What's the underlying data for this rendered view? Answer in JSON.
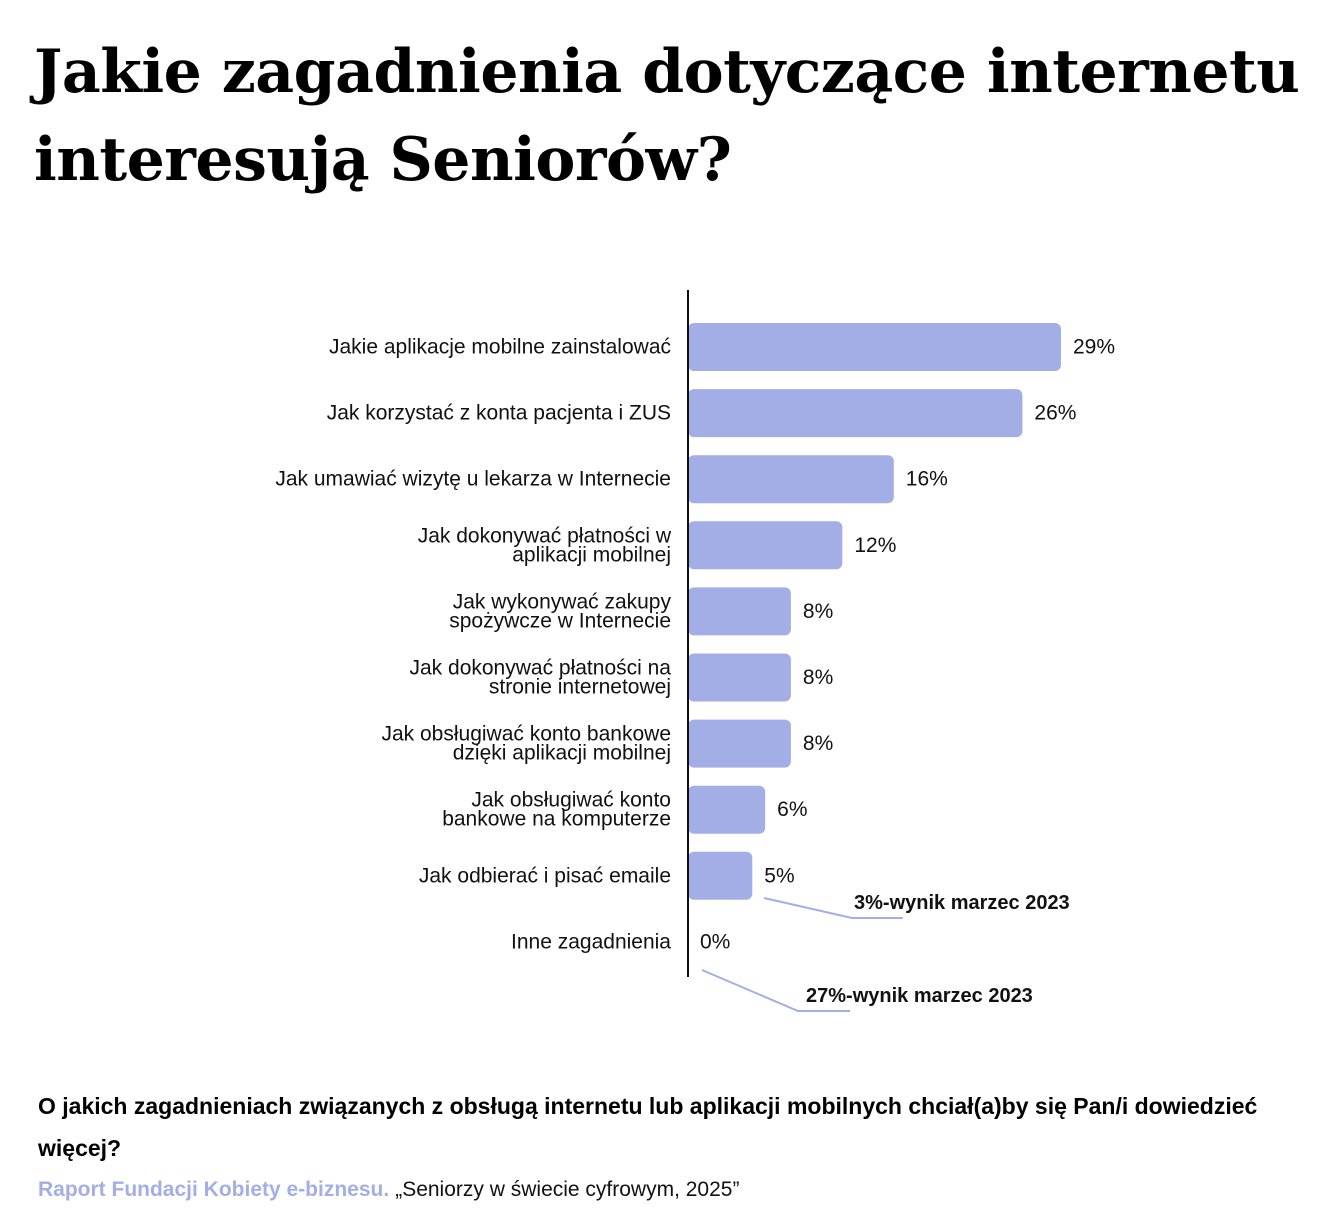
{
  "title": "Jakie zagadnienia dotyczące internetu interesują Seniorów?",
  "question": "O jakich zagadnieniach związanych z obsługą internetu lub aplikacji mobilnych chciał(a)by się Pan/i dowiedzieć więcej?",
  "source": {
    "org": "Raport Fundacji Kobiety e-biznesu.",
    "title": "„Seniorzy w świecie cyfrowym, 2025”"
  },
  "colors": {
    "bar": "#a4aee6",
    "axis": "#111111",
    "note_line": "#a4aee6",
    "source_org": "#a3aee6"
  },
  "chart_data": {
    "type": "bar",
    "orientation": "horizontal",
    "categories": [
      [
        "Jakie aplikacje mobilne zainstalować"
      ],
      [
        "Jak korzystać z konta pacjenta i ZUS"
      ],
      [
        "Jak umawiać wizytę u lekarza w Internecie"
      ],
      [
        "Jak dokonywać płatności w",
        "aplikacji mobilnej"
      ],
      [
        "Jak wykonywać zakupy",
        "spożywcze w Internecie"
      ],
      [
        "Jak dokonywać płatności na",
        "stronie internetowej"
      ],
      [
        "Jak obsługiwać konto bankowe",
        "dzięki aplikacji mobilnej"
      ],
      [
        "Jak obsługiwać konto",
        "bankowe na komputerze"
      ],
      [
        "Jak odbierać i pisać emaile"
      ],
      [
        "Inne zagadnienia"
      ]
    ],
    "values": [
      29,
      26,
      16,
      12,
      8,
      8,
      8,
      6,
      5,
      0
    ],
    "value_labels": [
      "29%",
      "26%",
      "16%",
      "12%",
      "8%",
      "8%",
      "8%",
      "6%",
      "5%",
      "0%"
    ],
    "annotations": [
      {
        "category_index": 8,
        "value": "3%",
        "text": "-wynik marzec 2023"
      },
      {
        "category_index": 9,
        "value": "27%",
        "text": "-wynik marzec 2023"
      }
    ],
    "xlim": [
      0,
      29
    ],
    "grid": false
  }
}
